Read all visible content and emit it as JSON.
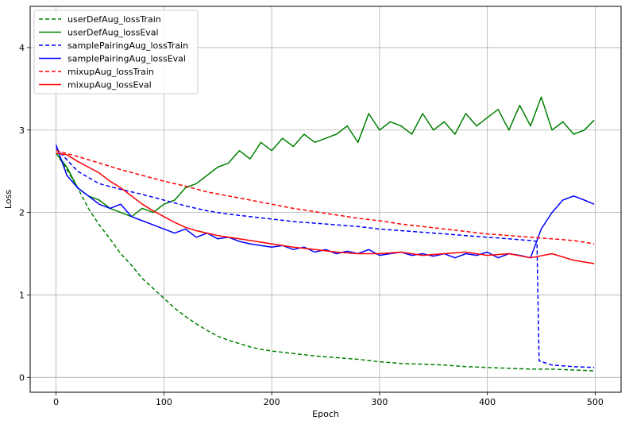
{
  "chart_data": {
    "type": "line",
    "title": "",
    "xlabel": "Epoch",
    "ylabel": "Loss",
    "xlim": [
      -24,
      524
    ],
    "ylim": [
      -0.18,
      4.5
    ],
    "xticks": [
      0,
      100,
      200,
      300,
      400,
      500
    ],
    "yticks": [
      0,
      1,
      2,
      3,
      4
    ],
    "grid": true,
    "legend_position": "top-left",
    "series": [
      {
        "name": "userDefAug_lossTrain",
        "color": "#008000",
        "dash": "dashed",
        "x": [
          0,
          10,
          20,
          30,
          40,
          50,
          60,
          70,
          80,
          90,
          100,
          110,
          120,
          130,
          140,
          150,
          160,
          170,
          180,
          190,
          200,
          220,
          240,
          260,
          280,
          300,
          320,
          340,
          360,
          380,
          400,
          420,
          440,
          460,
          480,
          499
        ],
        "y": [
          2.72,
          2.52,
          2.3,
          2.05,
          1.85,
          1.68,
          1.5,
          1.36,
          1.2,
          1.08,
          0.96,
          0.84,
          0.74,
          0.65,
          0.57,
          0.5,
          0.45,
          0.41,
          0.37,
          0.34,
          0.32,
          0.29,
          0.26,
          0.24,
          0.22,
          0.19,
          0.17,
          0.16,
          0.15,
          0.13,
          0.12,
          0.11,
          0.1,
          0.1,
          0.09,
          0.08
        ]
      },
      {
        "name": "userDefAug_lossEval",
        "color": "#008000",
        "dash": "solid",
        "x": [
          0,
          10,
          20,
          30,
          40,
          50,
          60,
          70,
          80,
          90,
          100,
          110,
          120,
          130,
          140,
          150,
          160,
          170,
          180,
          190,
          200,
          210,
          220,
          230,
          240,
          250,
          260,
          270,
          280,
          290,
          300,
          310,
          320,
          330,
          340,
          350,
          360,
          370,
          380,
          390,
          400,
          410,
          420,
          430,
          440,
          450,
          460,
          470,
          480,
          490,
          499
        ],
        "y": [
          2.72,
          2.55,
          2.3,
          2.2,
          2.15,
          2.05,
          2.0,
          1.95,
          2.05,
          2.0,
          2.1,
          2.15,
          2.3,
          2.35,
          2.45,
          2.55,
          2.6,
          2.75,
          2.65,
          2.85,
          2.75,
          2.9,
          2.8,
          2.95,
          2.85,
          2.9,
          2.95,
          3.05,
          2.85,
          3.2,
          3.0,
          3.1,
          3.05,
          2.95,
          3.2,
          3.0,
          3.1,
          2.95,
          3.2,
          3.05,
          3.15,
          3.25,
          3.0,
          3.3,
          3.05,
          3.4,
          3.0,
          3.1,
          2.95,
          3.0,
          3.12
        ]
      },
      {
        "name": "samplePairingAug_lossTrain",
        "color": "#0000ff",
        "dash": "dashed",
        "x": [
          0,
          20,
          40,
          60,
          80,
          100,
          120,
          140,
          160,
          180,
          200,
          220,
          240,
          260,
          280,
          300,
          320,
          340,
          360,
          380,
          400,
          420,
          440,
          446,
          448,
          460,
          480,
          499
        ],
        "y": [
          2.78,
          2.5,
          2.35,
          2.28,
          2.22,
          2.15,
          2.08,
          2.02,
          1.98,
          1.95,
          1.92,
          1.89,
          1.87,
          1.85,
          1.83,
          1.8,
          1.78,
          1.76,
          1.74,
          1.72,
          1.7,
          1.68,
          1.66,
          1.65,
          0.2,
          0.15,
          0.13,
          0.12
        ]
      },
      {
        "name": "samplePairingAug_lossEval",
        "color": "#0000ff",
        "dash": "solid",
        "x": [
          0,
          10,
          20,
          30,
          40,
          50,
          60,
          70,
          80,
          90,
          100,
          110,
          120,
          130,
          140,
          150,
          160,
          170,
          180,
          190,
          200,
          210,
          220,
          230,
          240,
          250,
          260,
          270,
          280,
          290,
          300,
          310,
          320,
          330,
          340,
          350,
          360,
          370,
          380,
          390,
          400,
          410,
          420,
          430,
          440,
          450,
          460,
          470,
          480,
          490,
          499
        ],
        "y": [
          2.82,
          2.45,
          2.3,
          2.2,
          2.1,
          2.05,
          2.1,
          1.95,
          1.9,
          1.85,
          1.8,
          1.75,
          1.8,
          1.7,
          1.75,
          1.68,
          1.7,
          1.65,
          1.62,
          1.6,
          1.58,
          1.6,
          1.55,
          1.58,
          1.52,
          1.55,
          1.5,
          1.53,
          1.5,
          1.55,
          1.48,
          1.5,
          1.52,
          1.48,
          1.5,
          1.47,
          1.5,
          1.45,
          1.5,
          1.48,
          1.52,
          1.45,
          1.5,
          1.48,
          1.45,
          1.8,
          2.0,
          2.15,
          2.2,
          2.15,
          2.1
        ]
      },
      {
        "name": "mixupAug_lossTrain",
        "color": "#ff0000",
        "dash": "dashed",
        "x": [
          0,
          20,
          40,
          60,
          80,
          100,
          120,
          140,
          160,
          180,
          200,
          220,
          240,
          260,
          280,
          300,
          320,
          340,
          360,
          380,
          400,
          420,
          440,
          460,
          480,
          499
        ],
        "y": [
          2.75,
          2.68,
          2.6,
          2.52,
          2.45,
          2.38,
          2.32,
          2.25,
          2.2,
          2.15,
          2.1,
          2.05,
          2.01,
          1.97,
          1.93,
          1.9,
          1.86,
          1.83,
          1.8,
          1.77,
          1.74,
          1.72,
          1.7,
          1.68,
          1.66,
          1.62
        ]
      },
      {
        "name": "mixupAug_lossEval",
        "color": "#ff0000",
        "dash": "solid",
        "x": [
          0,
          10,
          20,
          30,
          40,
          50,
          60,
          70,
          80,
          90,
          100,
          110,
          120,
          130,
          140,
          150,
          160,
          170,
          180,
          190,
          200,
          220,
          240,
          260,
          280,
          300,
          320,
          340,
          360,
          380,
          400,
          420,
          440,
          460,
          480,
          499
        ],
        "y": [
          2.72,
          2.7,
          2.62,
          2.55,
          2.48,
          2.38,
          2.3,
          2.2,
          2.1,
          2.02,
          1.95,
          1.88,
          1.82,
          1.78,
          1.75,
          1.72,
          1.7,
          1.68,
          1.66,
          1.64,
          1.62,
          1.58,
          1.55,
          1.52,
          1.5,
          1.5,
          1.52,
          1.48,
          1.5,
          1.52,
          1.48,
          1.5,
          1.45,
          1.5,
          1.42,
          1.38
        ]
      }
    ]
  }
}
